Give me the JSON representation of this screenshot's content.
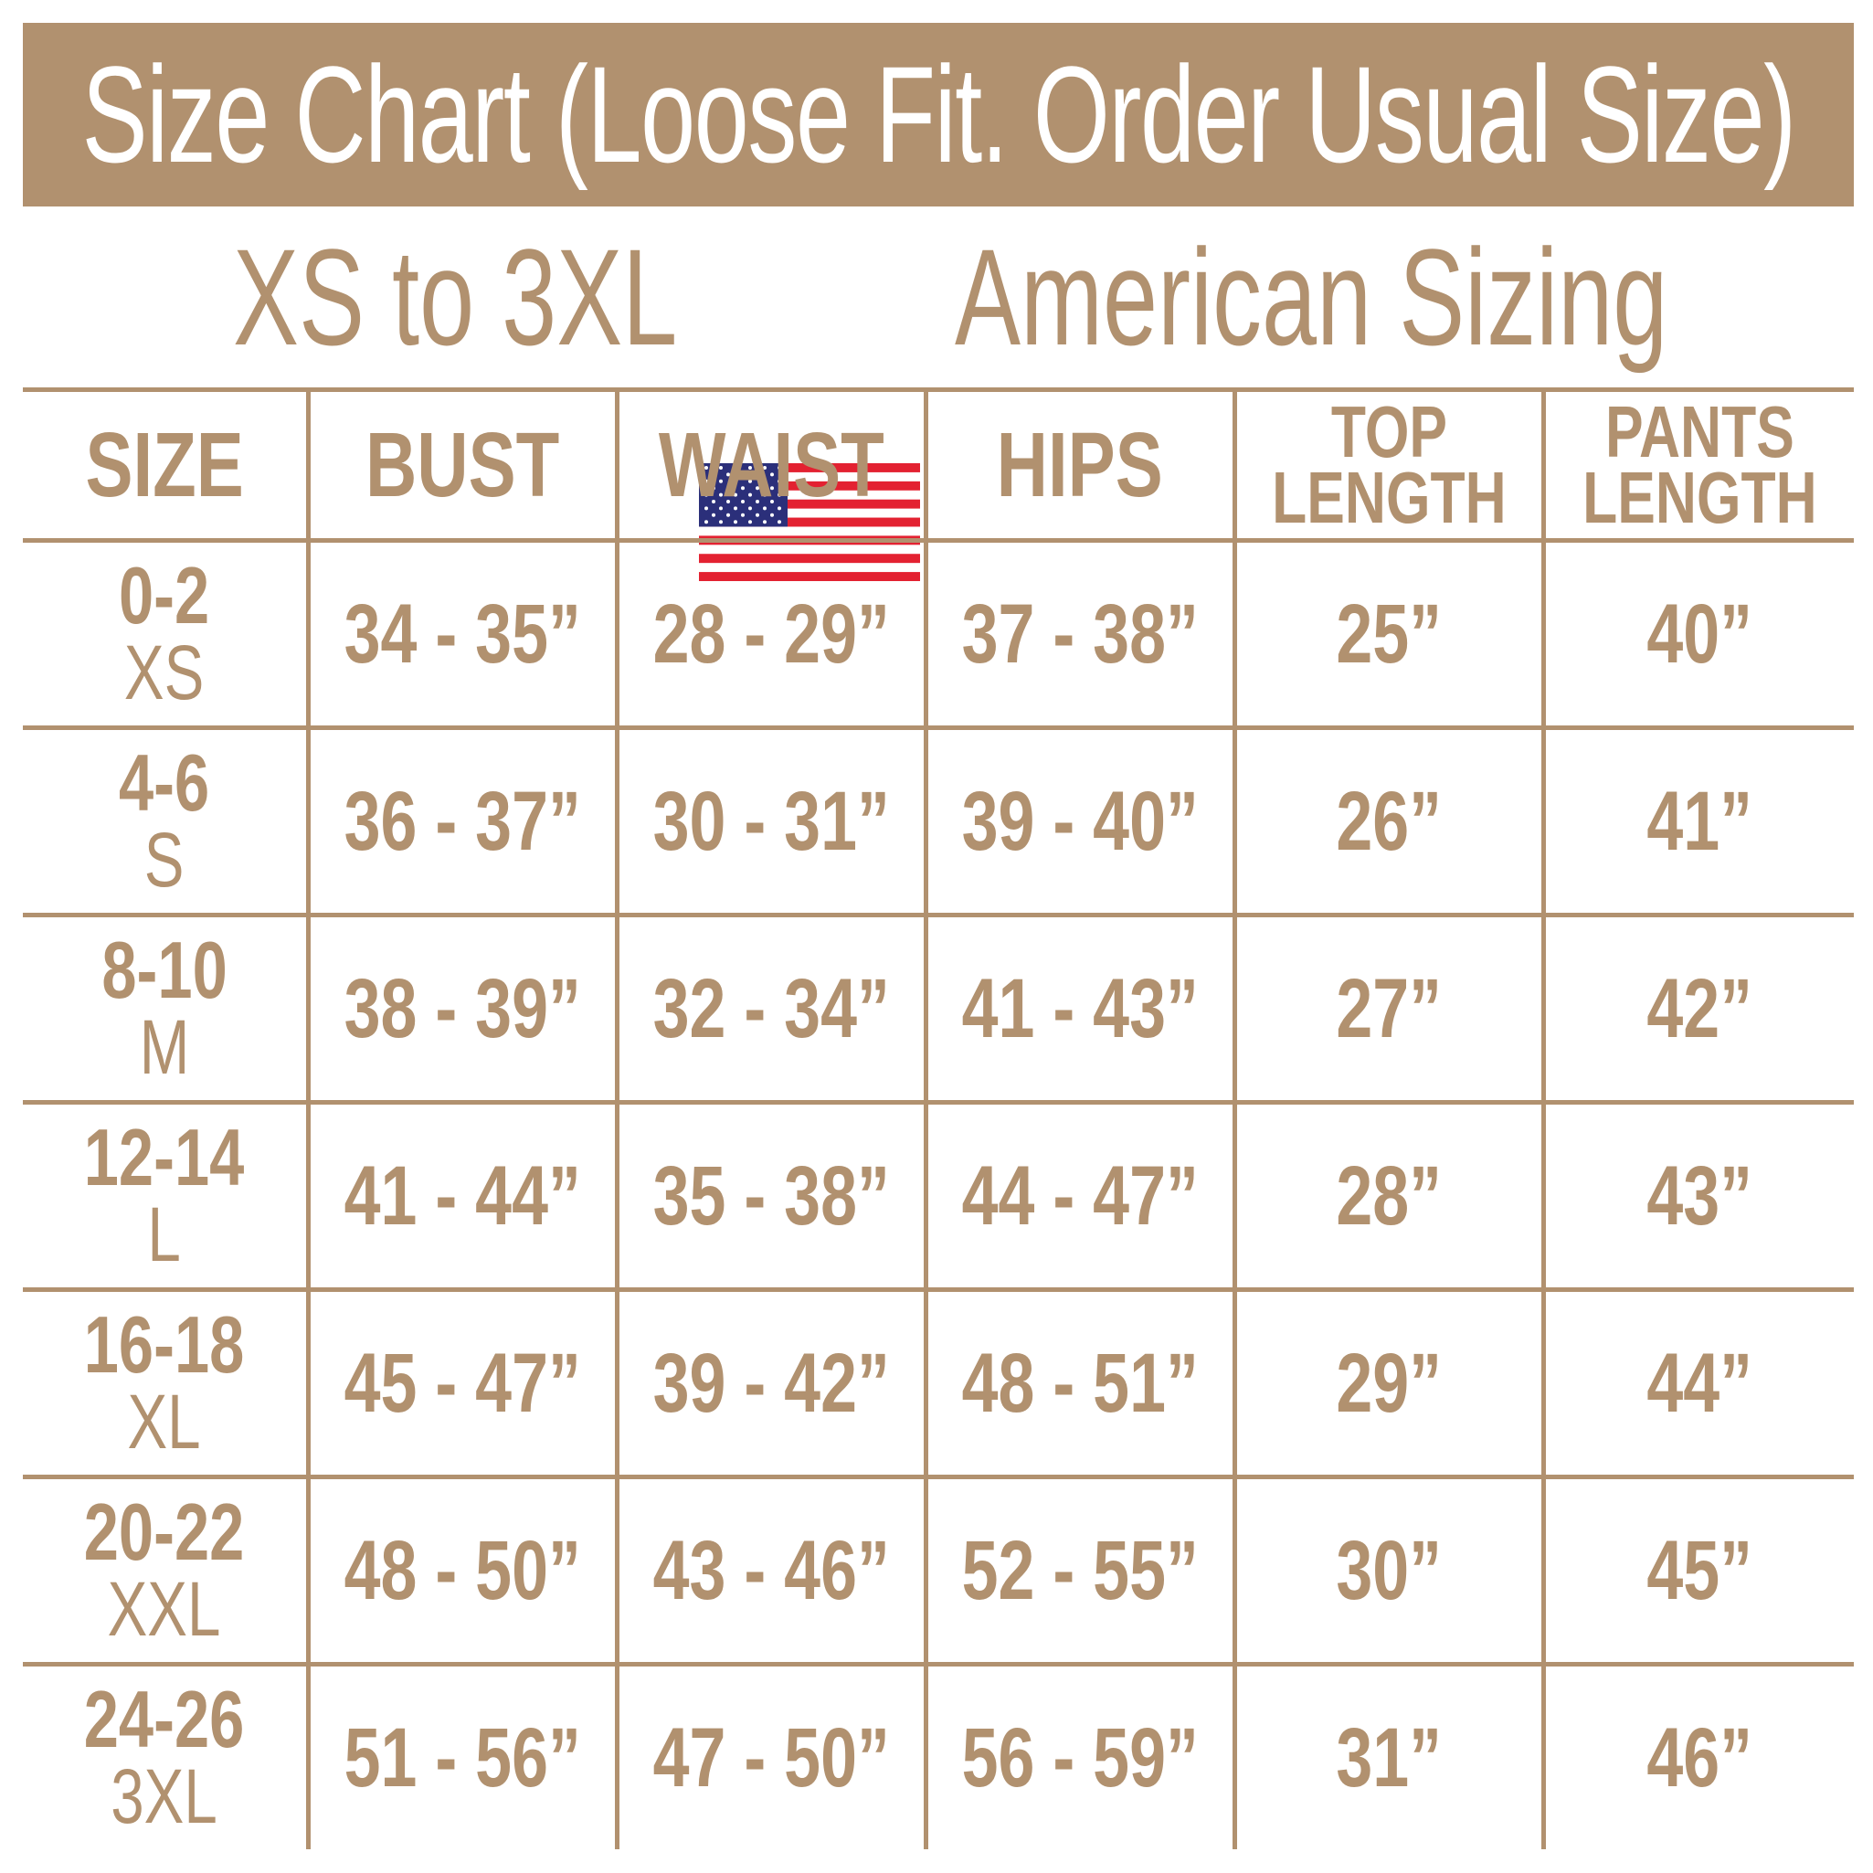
{
  "title": "Size Chart (Loose Fit. Order Usual Size)",
  "subtitle": {
    "left": "XS to 3XL",
    "right": "American Sizing",
    "flag_icon": "us-flag-icon"
  },
  "colors": {
    "accent": "#b1916f",
    "flag_red": "#e32131",
    "flag_blue": "#2b2f7a"
  },
  "headers": [
    "SIZE",
    "BUST",
    "WAIST",
    "HIPS",
    [
      "TOP",
      "LENGTH"
    ],
    [
      "PANTS",
      "LENGTH"
    ]
  ],
  "rows": [
    {
      "num": "0-2",
      "size": "XS",
      "bust": "34 - 35”",
      "waist": "28 - 29”",
      "hips": "37 - 38”",
      "top": "25”",
      "pants": "40”"
    },
    {
      "num": "4-6",
      "size": "S",
      "bust": "36 - 37”",
      "waist": "30 - 31”",
      "hips": "39 - 40”",
      "top": "26”",
      "pants": "41”"
    },
    {
      "num": "8-10",
      "size": "M",
      "bust": "38 - 39”",
      "waist": "32 - 34”",
      "hips": "41 - 43”",
      "top": "27”",
      "pants": "42”"
    },
    {
      "num": "12-14",
      "size": "L",
      "bust": "41 - 44”",
      "waist": "35 - 38”",
      "hips": "44 - 47”",
      "top": "28”",
      "pants": "43”"
    },
    {
      "num": "16-18",
      "size": "XL",
      "bust": "45 - 47”",
      "waist": "39 - 42”",
      "hips": "48 - 51”",
      "top": "29”",
      "pants": "44”"
    },
    {
      "num": "20-22",
      "size": "XXL",
      "bust": "48 - 50”",
      "waist": "43 - 46”",
      "hips": "52 - 55”",
      "top": "30”",
      "pants": "45”"
    },
    {
      "num": "24-26",
      "size": "3XL",
      "bust": "51 - 56”",
      "waist": "47 - 50”",
      "hips": "56 - 59”",
      "top": "31”",
      "pants": "46”"
    }
  ]
}
